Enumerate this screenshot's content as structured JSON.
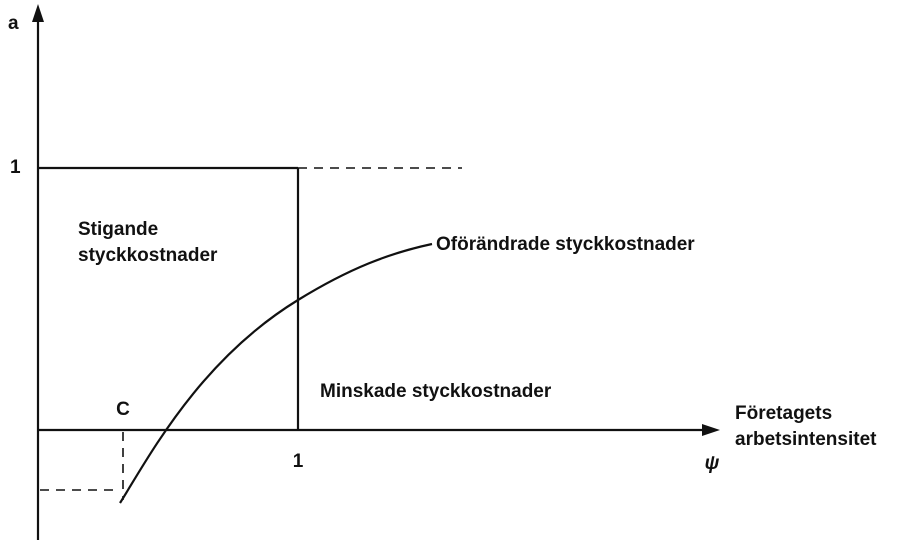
{
  "y_axis": {
    "label": "a",
    "tick": "1"
  },
  "x_axis": {
    "tick": "1",
    "symbol": "ψ",
    "label": [
      "Företagets",
      "arbetsintensitet"
    ]
  },
  "regions": {
    "rising": [
      "Stigande",
      "styckkostnader"
    ],
    "falling": "Minskade styckkostnader"
  },
  "curve": {
    "label": "Oförändrade styckkostnader"
  },
  "point": {
    "label": "C"
  }
}
